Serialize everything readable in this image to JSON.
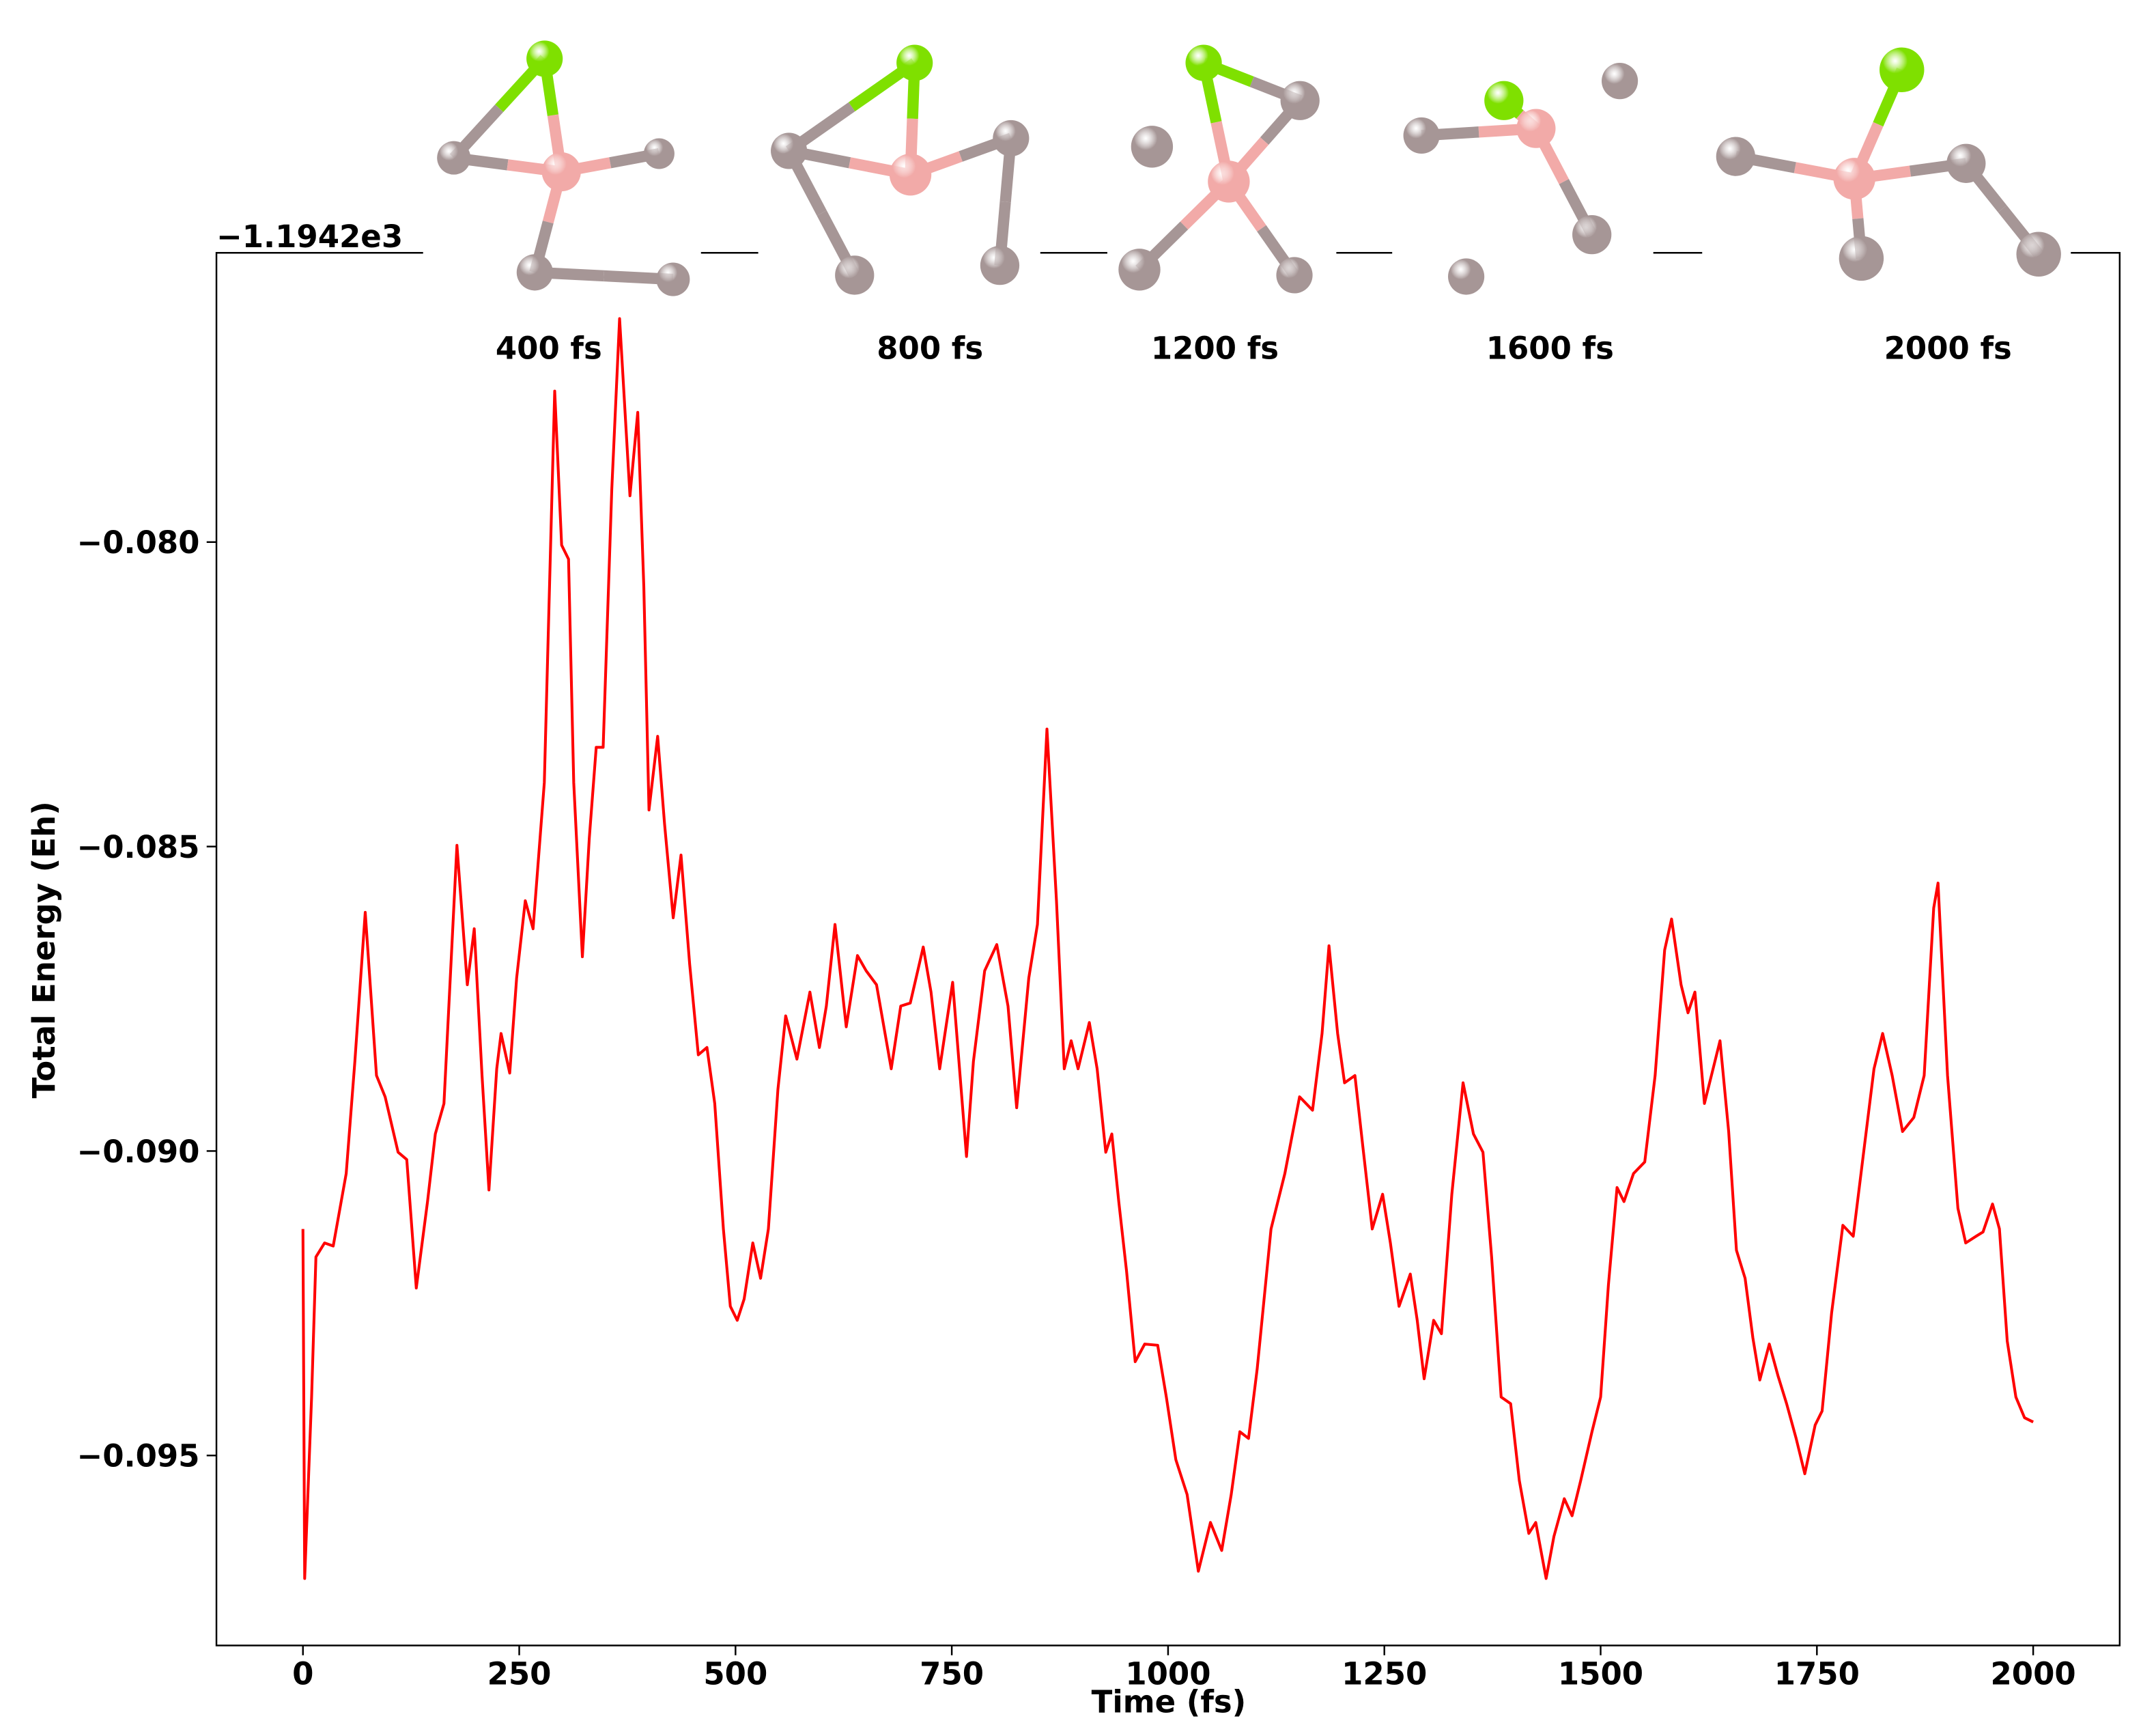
{
  "chart_data": {
    "type": "line",
    "xlabel": "Time (fs)",
    "ylabel": "Total Energy (Eh)",
    "offset_text": "−1.1942e3",
    "snapshot_labels": [
      "400 fs",
      "800 fs",
      "1200 fs",
      "1600 fs",
      "2000 fs"
    ],
    "xlim": [
      -100,
      2100
    ],
    "ylim": [
      -0.09812,
      -0.07525
    ],
    "xticks": [
      0,
      250,
      500,
      750,
      1000,
      1250,
      1500,
      1750,
      2000
    ],
    "yticks": [
      {
        "value": -0.08,
        "label": "−0.080"
      },
      {
        "value": -0.085,
        "label": "−0.085"
      },
      {
        "value": -0.09,
        "label": "−0.090"
      },
      {
        "value": -0.095,
        "label": "−0.095"
      }
    ],
    "grid": false,
    "series": [
      {
        "color": "#ff0000",
        "x": [
          0,
          2,
          10,
          15,
          25,
          35,
          50,
          60,
          72,
          85,
          95,
          110,
          120,
          131,
          144,
          153,
          163,
          178,
          190,
          198,
          207,
          215,
          224,
          229,
          239,
          247,
          257,
          266,
          279,
          291,
          299,
          307,
          313,
          323,
          331,
          339,
          347,
          357,
          366,
          378,
          387,
          394,
          400,
          410,
          418,
          428,
          437,
          447,
          457,
          467,
          476,
          486,
          494,
          502,
          510,
          520,
          529,
          538,
          549,
          558,
          571,
          586,
          597,
          605,
          615,
          628,
          641,
          651,
          663,
          680,
          691,
          702,
          717,
          726,
          736,
          751,
          767,
          775,
          788,
          802,
          815,
          825,
          839,
          849,
          860,
          871,
          880,
          888,
          896,
          909,
          918,
          928,
          935,
          943,
          952,
          962,
          973,
          988,
          998,
          1009,
          1022,
          1035,
          1049,
          1062,
          1073,
          1083,
          1093,
          1103,
          1119,
          1135,
          1152,
          1167,
          1178,
          1186,
          1196,
          1204,
          1216,
          1225,
          1236,
          1248,
          1257,
          1267,
          1280,
          1288,
          1296,
          1307,
          1316,
          1328,
          1341,
          1353,
          1364,
          1374,
          1385,
          1396,
          1406,
          1417,
          1425,
          1437,
          1446,
          1458,
          1467,
          1477,
          1490,
          1500,
          1509,
          1519,
          1527,
          1538,
          1551,
          1563,
          1574,
          1582,
          1593,
          1601,
          1609,
          1620,
          1630,
          1638,
          1648,
          1657,
          1667,
          1676,
          1684,
          1695,
          1705,
          1715,
          1726,
          1736,
          1748,
          1756,
          1767,
          1780,
          1792,
          1805,
          1816,
          1826,
          1837,
          1849,
          1862,
          1874,
          1885,
          1890,
          1901,
          1913,
          1922,
          1934,
          1942,
          1953,
          1961,
          1970,
          1980,
          1990,
          2000
        ],
        "values": [
          -0.09128,
          -0.09702,
          -0.09404,
          -0.09174,
          -0.09151,
          -0.09156,
          -0.09037,
          -0.08853,
          -0.08608,
          -0.08876,
          -0.08911,
          -0.09002,
          -0.09014,
          -0.09225,
          -0.09083,
          -0.08972,
          -0.08922,
          -0.08498,
          -0.08727,
          -0.08635,
          -0.08876,
          -0.09064,
          -0.08865,
          -0.08807,
          -0.08872,
          -0.08716,
          -0.08589,
          -0.08635,
          -0.08395,
          -0.07752,
          -0.08005,
          -0.08028,
          -0.08395,
          -0.08681,
          -0.08486,
          -0.08337,
          -0.08337,
          -0.07913,
          -0.07633,
          -0.07924,
          -0.07787,
          -0.08073,
          -0.0844,
          -0.08319,
          -0.08463,
          -0.08617,
          -0.08514,
          -0.08693,
          -0.08842,
          -0.0883,
          -0.08922,
          -0.09128,
          -0.09255,
          -0.09278,
          -0.09243,
          -0.09151,
          -0.09209,
          -0.09128,
          -0.08899,
          -0.08778,
          -0.08849,
          -0.08739,
          -0.0883,
          -0.08762,
          -0.08628,
          -0.08796,
          -0.08679,
          -0.08704,
          -0.08727,
          -0.08865,
          -0.08762,
          -0.08757,
          -0.08665,
          -0.08739,
          -0.08865,
          -0.08723,
          -0.09009,
          -0.08853,
          -0.08704,
          -0.08661,
          -0.08762,
          -0.08929,
          -0.08716,
          -0.08628,
          -0.08307,
          -0.08589,
          -0.08865,
          -0.08819,
          -0.08865,
          -0.08789,
          -0.08865,
          -0.09002,
          -0.08972,
          -0.09083,
          -0.09197,
          -0.09346,
          -0.09317,
          -0.09319,
          -0.09404,
          -0.09507,
          -0.09564,
          -0.0969,
          -0.0961,
          -0.09656,
          -0.09564,
          -0.09461,
          -0.09472,
          -0.09358,
          -0.09128,
          -0.09037,
          -0.08911,
          -0.08933,
          -0.08807,
          -0.08663,
          -0.08807,
          -0.08888,
          -0.08876,
          -0.08991,
          -0.09128,
          -0.09071,
          -0.09151,
          -0.09255,
          -0.09202,
          -0.09278,
          -0.09374,
          -0.09278,
          -0.093,
          -0.09071,
          -0.08888,
          -0.08972,
          -0.09002,
          -0.09174,
          -0.09404,
          -0.09415,
          -0.09541,
          -0.09628,
          -0.0961,
          -0.09702,
          -0.09633,
          -0.09571,
          -0.09599,
          -0.09541,
          -0.09461,
          -0.09404,
          -0.0922,
          -0.0906,
          -0.09083,
          -0.09037,
          -0.09018,
          -0.08876,
          -0.0867,
          -0.08619,
          -0.08727,
          -0.08773,
          -0.08739,
          -0.08922,
          -0.08865,
          -0.08819,
          -0.08968,
          -0.09163,
          -0.09209,
          -0.09307,
          -0.09376,
          -0.09317,
          -0.09369,
          -0.09415,
          -0.09472,
          -0.0953,
          -0.0945,
          -0.09427,
          -0.09266,
          -0.09122,
          -0.0914,
          -0.08991,
          -0.08865,
          -0.08807,
          -0.08876,
          -0.08968,
          -0.08945,
          -0.08876,
          -0.08601,
          -0.0856,
          -0.08876,
          -0.09094,
          -0.09151,
          -0.0914,
          -0.09133,
          -0.09087,
          -0.09128,
          -0.09312,
          -0.09404,
          -0.09438,
          -0.09445
        ]
      }
    ]
  }
}
